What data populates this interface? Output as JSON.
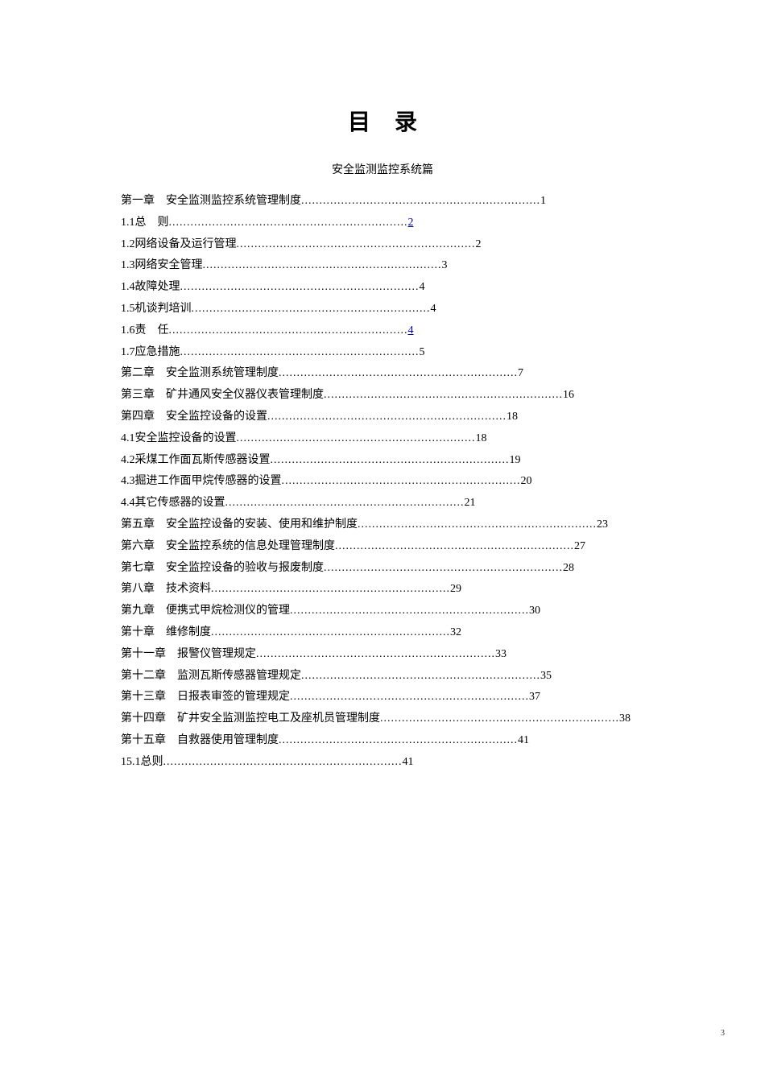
{
  "title": "目录",
  "subtitle": "安全监测监控系统篇",
  "entries": [
    {
      "label": "第一章　安全监测监控系统管理制度",
      "page": "1",
      "underline": false
    },
    {
      "label": "1.1总　则",
      "page": "2",
      "underline": true
    },
    {
      "label": "1.2网络设备及运行管理 ",
      "page": "2",
      "underline": false
    },
    {
      "label": "1.3网络安全管理 ",
      "page": "3",
      "underline": false
    },
    {
      "label": "1.4故障处理 ",
      "page": "4",
      "underline": false
    },
    {
      "label": "1.5机谈判培训 ",
      "page": "4",
      "underline": false
    },
    {
      "label": "1.6责　任",
      "page": "4",
      "underline": true
    },
    {
      "label": "1.7应急措施 ",
      "page": "5",
      "underline": false
    },
    {
      "label": "第二章　安全监测系统管理制度",
      "page": "7",
      "underline": false
    },
    {
      "label": "第三章　矿井通风安全仪器仪表管理制度",
      "page": "16",
      "underline": false
    },
    {
      "label": "第四章　安全监控设备的设置",
      "page": "18",
      "underline": false
    },
    {
      "label": "4.1安全监控设备的设置 ",
      "page": "18",
      "underline": false
    },
    {
      "label": "4.2采煤工作面瓦斯传感器设置 ",
      "page": "19",
      "underline": false
    },
    {
      "label": "4.3掘进工作面甲烷传感器的设置 ",
      "page": "20",
      "underline": false
    },
    {
      "label": "4.4其它传感器的设置 ",
      "page": "21",
      "underline": false
    },
    {
      "label": "第五章　安全监控设备的安装、使用和维护制度",
      "page": "23",
      "underline": false
    },
    {
      "label": "第六章　安全监控系统的信息处理管理制度",
      "page": "27",
      "underline": false
    },
    {
      "label": "第七章　安全监控设备的验收与报废制度",
      "page": "28",
      "underline": false
    },
    {
      "label": "第八章　技术资料",
      "page": "29",
      "underline": false
    },
    {
      "label": "第九章　便携式甲烷检测仪的管理",
      "page": "30",
      "underline": false
    },
    {
      "label": "第十章　维修制度",
      "page": "32",
      "underline": false
    },
    {
      "label": "第十一章　报警仪管理规定",
      "page": "33",
      "underline": false
    },
    {
      "label": "第十二章　监测瓦斯传感器管理规定",
      "page": "35",
      "underline": false
    },
    {
      "label": "第十三章　日报表审签的管理规定",
      "page": "37",
      "underline": false
    },
    {
      "label": "第十四章　矿井安全监测监控电工及座机员管理制度",
      "page": "38",
      "underline": false
    },
    {
      "label": "第十五章　自救器使用管理制度",
      "page": "41",
      "underline": false
    },
    {
      "label": "15.1总则 ",
      "page": "41",
      "underline": false
    }
  ],
  "dots": "..................................................................",
  "pageNumber": "3"
}
